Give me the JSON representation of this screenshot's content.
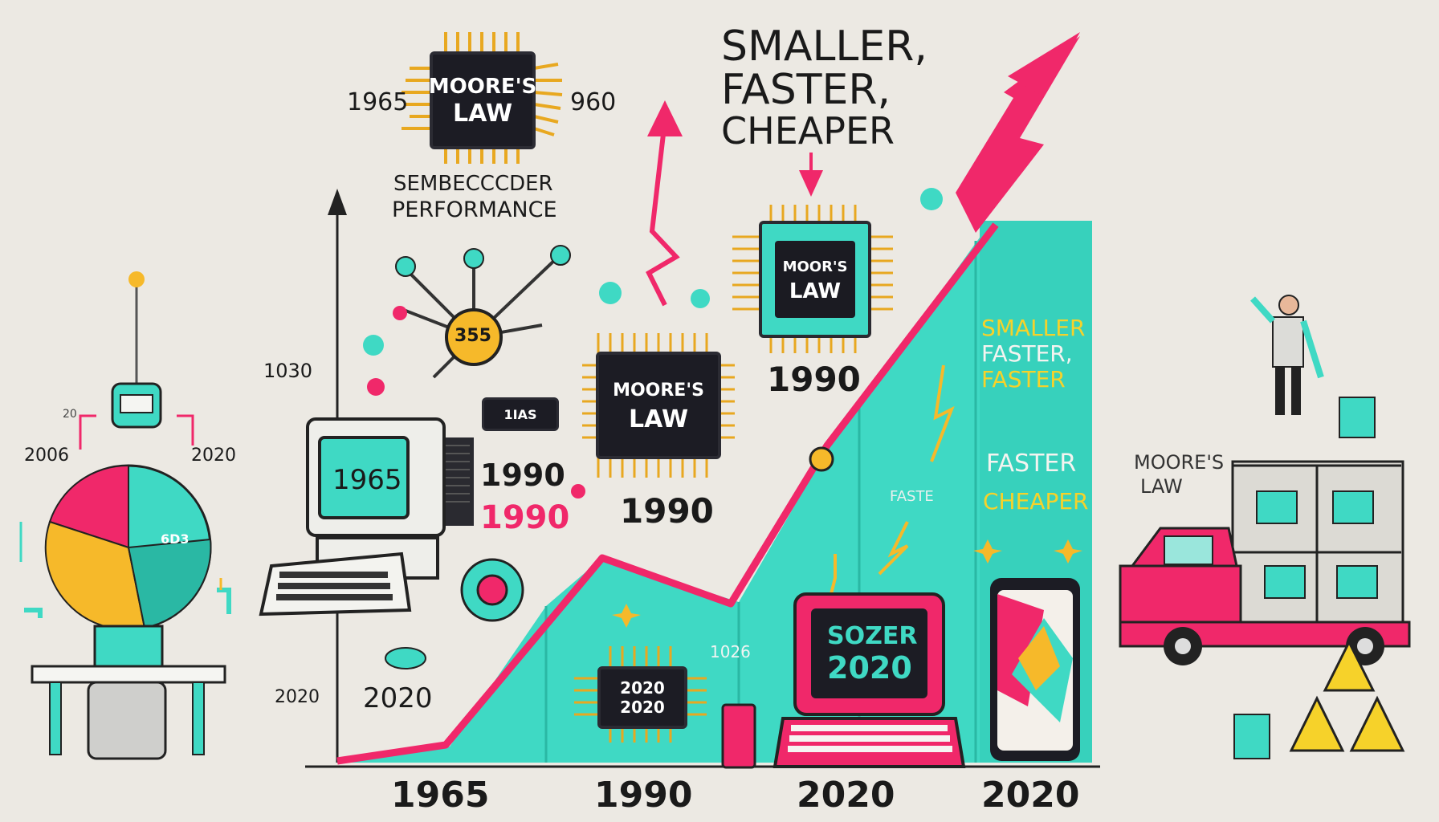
{
  "headline": {
    "line1": "SMALLER,",
    "line2": "FASTER,",
    "line3": "CHEAPER"
  },
  "top_chip": {
    "label_line1": "MOORE'S",
    "label_line2": "LAW",
    "left_year": "1965",
    "right_year": "960"
  },
  "subtitle": {
    "line1": "SEMBECCCDER",
    "line2": "PERFORMANCE"
  },
  "left_axis_labels": {
    "upper": "1030",
    "lower": "2020"
  },
  "node_badge": "355",
  "small_chip_label": "1IAS",
  "computer_screen": "1965",
  "mid_chip": {
    "line1": "MOORE'S",
    "line2": "LAW",
    "year": "1990"
  },
  "upper_chip": {
    "line1": "MOOR'S",
    "line2": "LAW",
    "year": "1990"
  },
  "years_stack": {
    "black": "1990",
    "pink": "1990"
  },
  "bottom_left_year": "2020",
  "graph_chip": {
    "line1": "2020",
    "line2": "2020"
  },
  "graph_small_text": "1026",
  "graph_faint_text": "FASTE",
  "laptop_screen": {
    "line1": "SOZER",
    "line2": "2020"
  },
  "tower_text": {
    "line1": "SMALLER",
    "line2": "FASTER,",
    "line3": "FASTER",
    "line4": "FASTER",
    "line5": "CHEAPER"
  },
  "pie_labels": {
    "left": "2006",
    "right": "2020",
    "small": "20",
    "slice": "6D3"
  },
  "truck_label": {
    "line1": "MOORE'S",
    "line2": "LAW"
  },
  "bottom_years": [
    "1965",
    "1990",
    "2020",
    "2020"
  ],
  "colors": {
    "teal": "#3fd9c4",
    "pink": "#f0286a",
    "yellow": "#f6b92a",
    "dark": "#1c1c24"
  }
}
